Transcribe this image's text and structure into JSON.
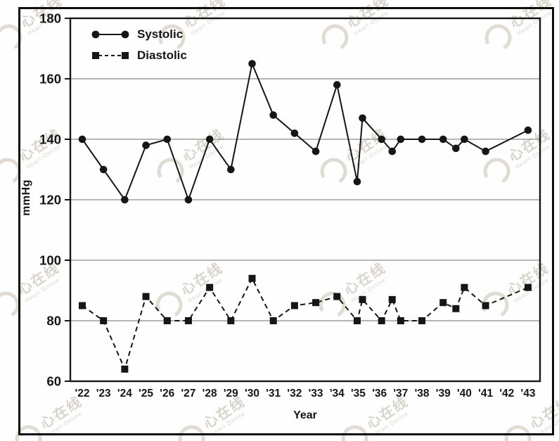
{
  "watermark": {
    "brand": "心在线",
    "subbrand": "Heart Online"
  },
  "chart_data": {
    "type": "line",
    "xlabel": "Year",
    "ylabel": "mmHg",
    "ylim": [
      60,
      180
    ],
    "yticks": [
      180,
      160,
      140,
      120,
      100,
      80,
      60
    ],
    "x_categories": [
      "'22",
      "'23",
      "'24",
      "'25",
      "'26",
      "'27",
      "'28",
      "'29",
      "'30",
      "'31",
      "'32",
      "'33",
      "'34",
      "'35",
      "'36",
      "'37",
      "'38",
      "'39",
      "'40",
      "'41",
      "'42",
      "'43"
    ],
    "grid": "horizontal",
    "legend_position": "top-left-inside",
    "x_note": "x = index into x_categories (0 = '22). Fractional x = extra reading plotted between year ticks; no reading at '42.",
    "series": [
      {
        "name": "Systolic",
        "marker": "filled-circle",
        "line": "solid",
        "points": [
          [
            0,
            140
          ],
          [
            1,
            130
          ],
          [
            2,
            120
          ],
          [
            3,
            138
          ],
          [
            4,
            140
          ],
          [
            5,
            120
          ],
          [
            6,
            140
          ],
          [
            7,
            130
          ],
          [
            8,
            165
          ],
          [
            9,
            148
          ],
          [
            10,
            142
          ],
          [
            11,
            136
          ],
          [
            12,
            158
          ],
          [
            12.95,
            126
          ],
          [
            13.2,
            147
          ],
          [
            14.1,
            140
          ],
          [
            14.6,
            136
          ],
          [
            15,
            140
          ],
          [
            16,
            140
          ],
          [
            17,
            140
          ],
          [
            17.6,
            137
          ],
          [
            18,
            140
          ],
          [
            19,
            136
          ],
          [
            21,
            143
          ]
        ]
      },
      {
        "name": "Diastolic",
        "marker": "filled-square",
        "line": "dashed",
        "points": [
          [
            0,
            85
          ],
          [
            1,
            80
          ],
          [
            2,
            64
          ],
          [
            3,
            88
          ],
          [
            4,
            80
          ],
          [
            5,
            80
          ],
          [
            6,
            91
          ],
          [
            7,
            80
          ],
          [
            8,
            94
          ],
          [
            9,
            80
          ],
          [
            10,
            85
          ],
          [
            11,
            86
          ],
          [
            12,
            88
          ],
          [
            12.95,
            80
          ],
          [
            13.2,
            87
          ],
          [
            14.1,
            80
          ],
          [
            14.6,
            87
          ],
          [
            15,
            80
          ],
          [
            16,
            80
          ],
          [
            17,
            86
          ],
          [
            17.6,
            84
          ],
          [
            18,
            91
          ],
          [
            19,
            85
          ],
          [
            21,
            91
          ]
        ]
      }
    ]
  }
}
